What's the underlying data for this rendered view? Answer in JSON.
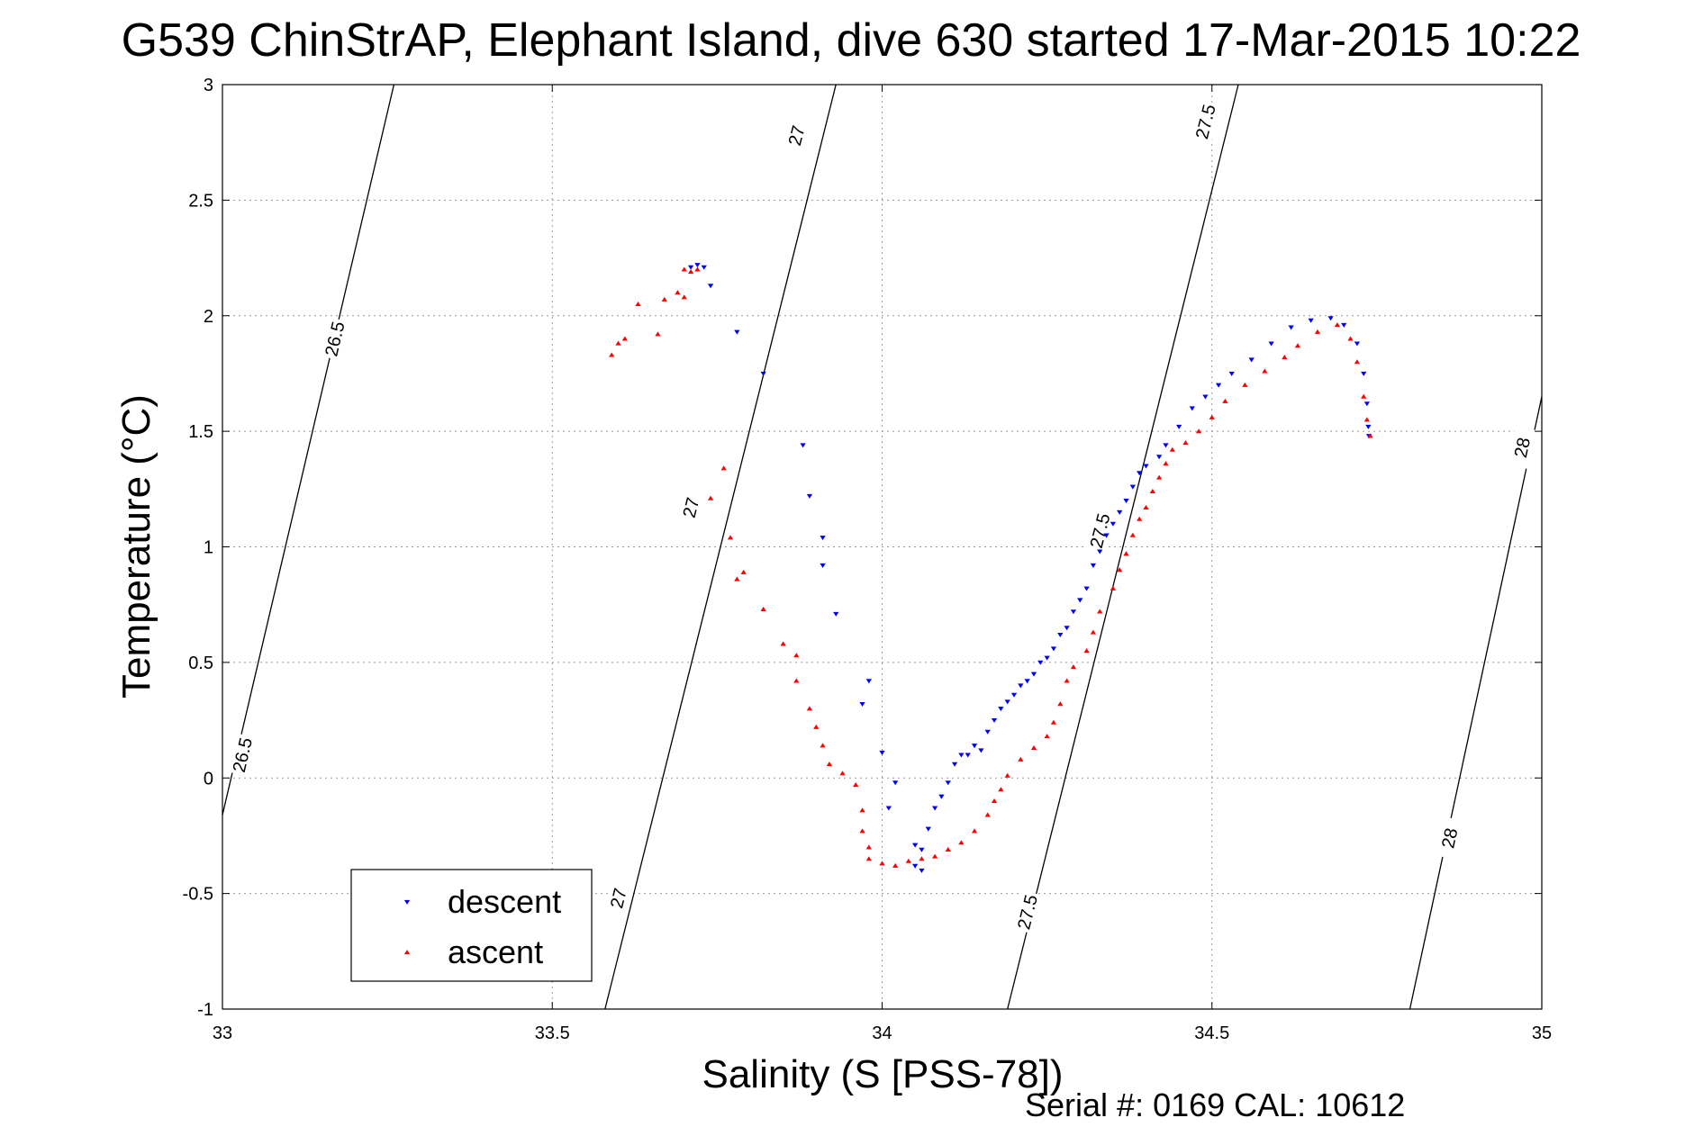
{
  "chart_data": {
    "type": "scatter",
    "title": "G539 ChinStrAP, Elephant Island, dive 630 started 17-Mar-2015 10:22",
    "xlabel": "Salinity (S [PSS-78])",
    "ylabel": "Temperature (°C)",
    "xlim": [
      33,
      35
    ],
    "ylim": [
      -1,
      3
    ],
    "x_ticks": [
      "33",
      "33.5",
      "34",
      "34.5",
      "35"
    ],
    "y_ticks": [
      "-1",
      "-0.5",
      "0",
      "0.5",
      "1",
      "1.5",
      "2",
      "2.5",
      "3"
    ],
    "grid": true,
    "legend_position": "bottom-left",
    "footer": "Serial #: 0169 CAL: 10612",
    "contours": [
      {
        "label": "26.5",
        "points": [
          [
            33.0,
            -0.16
          ],
          [
            33.26,
            3.0
          ]
        ],
        "label_positions": [
          [
            33.03,
            0.1
          ],
          [
            33.17,
            1.9
          ]
        ]
      },
      {
        "label": "27",
        "points": [
          [
            33.58,
            -1.0
          ],
          [
            33.93,
            3.0
          ]
        ],
        "label_positions": [
          [
            33.6,
            -0.52
          ],
          [
            33.71,
            1.17
          ],
          [
            33.87,
            2.78
          ]
        ]
      },
      {
        "label": "27.5",
        "points": [
          [
            34.19,
            -1.0
          ],
          [
            34.54,
            3.0
          ]
        ],
        "label_positions": [
          [
            34.22,
            -0.58
          ],
          [
            34.33,
            1.07
          ],
          [
            34.49,
            2.84
          ]
        ]
      },
      {
        "label": "28",
        "points": [
          [
            34.8,
            -1.0
          ],
          [
            35.0,
            1.65
          ]
        ],
        "label_positions": [
          [
            34.86,
            -0.26
          ],
          [
            34.97,
            1.43
          ]
        ]
      }
    ],
    "series": [
      {
        "name": "descent",
        "color": "#0000ff",
        "marker": "triangle-down",
        "points": [
          [
            33.71,
            2.21
          ],
          [
            33.72,
            2.22
          ],
          [
            33.73,
            2.21
          ],
          [
            33.74,
            2.13
          ],
          [
            33.78,
            1.93
          ],
          [
            33.82,
            1.75
          ],
          [
            33.88,
            1.44
          ],
          [
            33.89,
            1.22
          ],
          [
            33.91,
            1.04
          ],
          [
            33.91,
            0.92
          ],
          [
            33.93,
            0.71
          ],
          [
            33.97,
            0.32
          ],
          [
            33.98,
            0.42
          ],
          [
            34.0,
            0.11
          ],
          [
            34.02,
            -0.02
          ],
          [
            34.01,
            -0.13
          ],
          [
            34.05,
            -0.29
          ],
          [
            34.06,
            -0.31
          ],
          [
            34.05,
            -0.38
          ],
          [
            34.06,
            -0.4
          ],
          [
            34.07,
            -0.22
          ],
          [
            34.08,
            -0.13
          ],
          [
            34.09,
            -0.08
          ],
          [
            34.1,
            -0.02
          ],
          [
            34.11,
            0.06
          ],
          [
            34.12,
            0.1
          ],
          [
            34.13,
            0.1
          ],
          [
            34.14,
            0.14
          ],
          [
            34.15,
            0.12
          ],
          [
            34.16,
            0.2
          ],
          [
            34.17,
            0.25
          ],
          [
            34.18,
            0.3
          ],
          [
            34.19,
            0.33
          ],
          [
            34.2,
            0.36
          ],
          [
            34.21,
            0.4
          ],
          [
            34.22,
            0.42
          ],
          [
            34.23,
            0.45
          ],
          [
            34.24,
            0.5
          ],
          [
            34.25,
            0.52
          ],
          [
            34.26,
            0.56
          ],
          [
            34.27,
            0.62
          ],
          [
            34.28,
            0.65
          ],
          [
            34.29,
            0.72
          ],
          [
            34.3,
            0.77
          ],
          [
            34.31,
            0.82
          ],
          [
            34.32,
            0.92
          ],
          [
            34.33,
            0.98
          ],
          [
            34.34,
            1.05
          ],
          [
            34.35,
            1.1
          ],
          [
            34.36,
            1.15
          ],
          [
            34.37,
            1.2
          ],
          [
            34.38,
            1.26
          ],
          [
            34.39,
            1.32
          ],
          [
            34.4,
            1.35
          ],
          [
            34.42,
            1.39
          ],
          [
            34.43,
            1.44
          ],
          [
            34.45,
            1.52
          ],
          [
            34.47,
            1.6
          ],
          [
            34.49,
            1.65
          ],
          [
            34.51,
            1.7
          ],
          [
            34.53,
            1.75
          ],
          [
            34.56,
            1.81
          ],
          [
            34.59,
            1.88
          ],
          [
            34.62,
            1.95
          ],
          [
            34.65,
            1.98
          ],
          [
            34.68,
            1.99
          ],
          [
            34.7,
            1.96
          ],
          [
            34.72,
            1.88
          ],
          [
            34.73,
            1.75
          ],
          [
            34.735,
            1.62
          ],
          [
            34.737,
            1.52
          ],
          [
            34.738,
            1.48
          ]
        ]
      },
      {
        "name": "ascent",
        "color": "#ff0000",
        "marker": "triangle-up",
        "points": [
          [
            33.72,
            2.2
          ],
          [
            33.71,
            2.19
          ],
          [
            33.7,
            2.2
          ],
          [
            33.7,
            2.08
          ],
          [
            33.69,
            2.1
          ],
          [
            33.67,
            2.07
          ],
          [
            33.63,
            2.05
          ],
          [
            33.66,
            1.92
          ],
          [
            33.6,
            1.88
          ],
          [
            33.59,
            1.83
          ],
          [
            33.61,
            1.9
          ],
          [
            33.76,
            1.34
          ],
          [
            33.74,
            1.21
          ],
          [
            33.77,
            1.04
          ],
          [
            33.78,
            0.86
          ],
          [
            33.79,
            0.89
          ],
          [
            33.82,
            0.73
          ],
          [
            33.85,
            0.58
          ],
          [
            33.87,
            0.53
          ],
          [
            33.87,
            0.42
          ],
          [
            33.89,
            0.3
          ],
          [
            33.9,
            0.22
          ],
          [
            33.91,
            0.14
          ],
          [
            33.92,
            0.06
          ],
          [
            33.94,
            0.02
          ],
          [
            33.96,
            -0.03
          ],
          [
            33.97,
            -0.14
          ],
          [
            33.97,
            -0.23
          ],
          [
            33.98,
            -0.3
          ],
          [
            33.98,
            -0.35
          ],
          [
            34.0,
            -0.37
          ],
          [
            34.02,
            -0.38
          ],
          [
            34.04,
            -0.36
          ],
          [
            34.06,
            -0.35
          ],
          [
            34.08,
            -0.34
          ],
          [
            34.1,
            -0.31
          ],
          [
            34.12,
            -0.28
          ],
          [
            34.14,
            -0.23
          ],
          [
            34.16,
            -0.16
          ],
          [
            34.17,
            -0.1
          ],
          [
            34.18,
            -0.05
          ],
          [
            34.19,
            0.01
          ],
          [
            34.21,
            0.08
          ],
          [
            34.23,
            0.13
          ],
          [
            34.25,
            0.18
          ],
          [
            34.26,
            0.24
          ],
          [
            34.27,
            0.32
          ],
          [
            34.28,
            0.42
          ],
          [
            34.29,
            0.48
          ],
          [
            34.31,
            0.55
          ],
          [
            34.32,
            0.63
          ],
          [
            34.33,
            0.72
          ],
          [
            34.35,
            0.82
          ],
          [
            34.36,
            0.9
          ],
          [
            34.37,
            0.97
          ],
          [
            34.38,
            1.05
          ],
          [
            34.39,
            1.12
          ],
          [
            34.4,
            1.17
          ],
          [
            34.41,
            1.24
          ],
          [
            34.42,
            1.3
          ],
          [
            34.43,
            1.36
          ],
          [
            34.44,
            1.42
          ],
          [
            34.46,
            1.45
          ],
          [
            34.48,
            1.5
          ],
          [
            34.5,
            1.56
          ],
          [
            34.52,
            1.63
          ],
          [
            34.55,
            1.7
          ],
          [
            34.58,
            1.76
          ],
          [
            34.61,
            1.82
          ],
          [
            34.63,
            1.87
          ],
          [
            34.66,
            1.93
          ],
          [
            34.69,
            1.96
          ],
          [
            34.71,
            1.9
          ],
          [
            34.72,
            1.8
          ],
          [
            34.73,
            1.65
          ],
          [
            34.735,
            1.55
          ],
          [
            34.74,
            1.48
          ]
        ]
      }
    ]
  }
}
